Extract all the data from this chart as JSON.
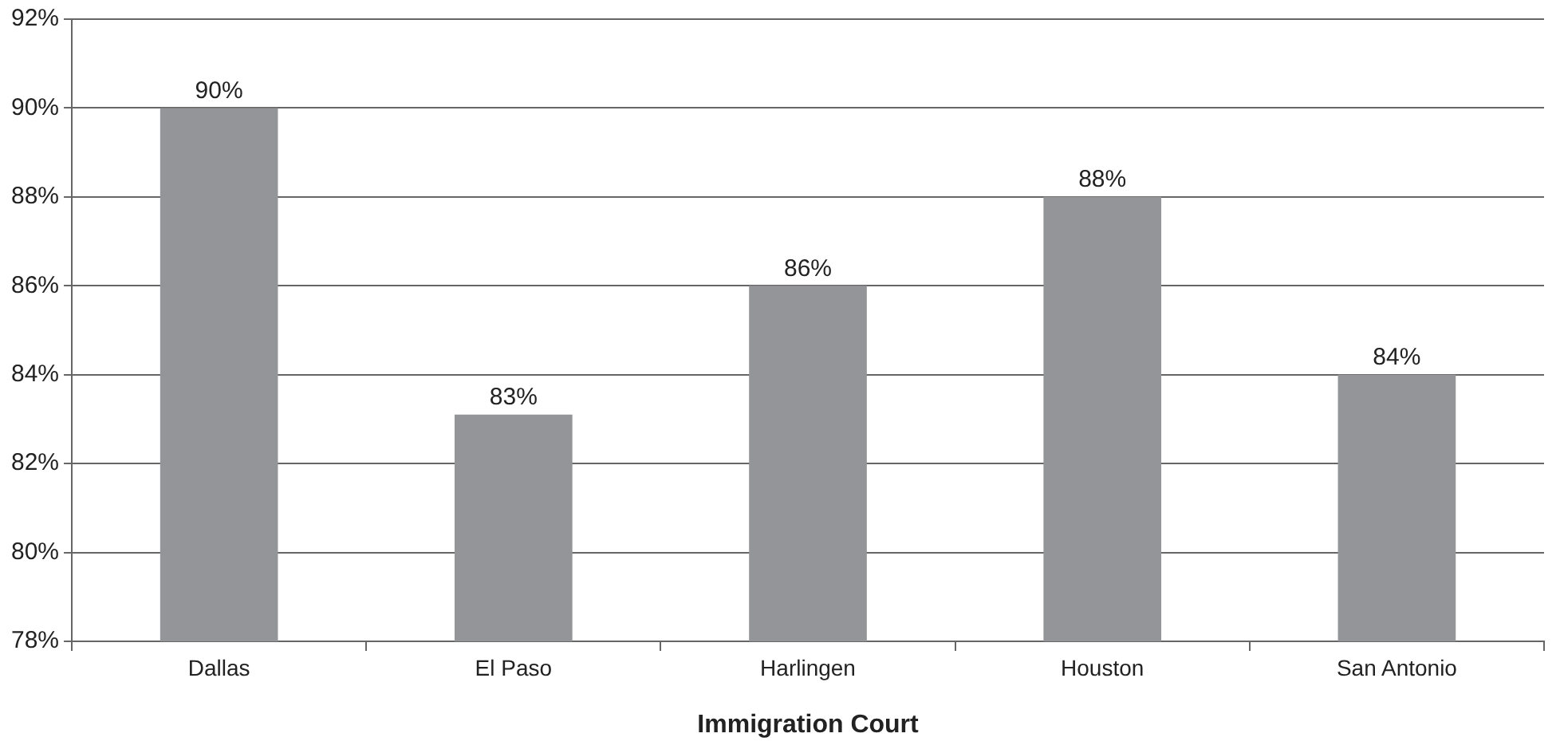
{
  "chart_data": {
    "type": "bar",
    "xlabel": "Immigration Court",
    "categories": [
      "Dallas",
      "El Paso",
      "Harlingen",
      "Houston",
      "San Antonio"
    ],
    "values": [
      90,
      83.1,
      86,
      88,
      84
    ],
    "value_labels": [
      "90%",
      "83%",
      "86%",
      "88%",
      "84%"
    ],
    "color": "#939598",
    "ylim": [
      78,
      92
    ],
    "yticks": [
      {
        "value": 78,
        "label": "78%"
      },
      {
        "value": 80,
        "label": "80%"
      },
      {
        "value": 82,
        "label": "82%"
      },
      {
        "value": 84,
        "label": "84%"
      },
      {
        "value": 86,
        "label": "86%"
      },
      {
        "value": 88,
        "label": "88%"
      },
      {
        "value": 90,
        "label": "90%"
      },
      {
        "value": 92,
        "label": "92%"
      }
    ],
    "grid": "y",
    "legend": false
  }
}
